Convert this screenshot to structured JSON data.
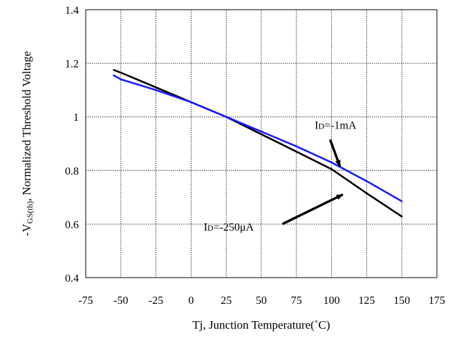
{
  "chart_data": {
    "type": "line",
    "title": "",
    "xlabel": "Tj, Junction Temperature(˚C)",
    "ylabel_prefix": "-V",
    "ylabel_sub": "GS(th)",
    "ylabel_suffix": ", Normalized Threshold Voltage",
    "xlim": [
      -75,
      175
    ],
    "ylim": [
      0.4,
      1.4
    ],
    "xticks": [
      -75,
      -50,
      -25,
      0,
      25,
      50,
      75,
      100,
      125,
      150,
      175
    ],
    "yticks": [
      0.4,
      0.6,
      0.8,
      1.0,
      1.2,
      1.4
    ],
    "ytick_labels": [
      "0.4",
      "0.6",
      "0.8",
      "1",
      "1.2",
      "1.4"
    ],
    "grid": true,
    "series": [
      {
        "name": "ID=-250μA",
        "color": "#000000",
        "x": [
          -55,
          -50,
          -25,
          0,
          25,
          50,
          75,
          100,
          125,
          150
        ],
        "y": [
          1.175,
          1.165,
          1.11,
          1.055,
          1.0,
          0.935,
          0.87,
          0.805,
          0.715,
          0.628
        ]
      },
      {
        "name": "ID=-1mA",
        "color": "#1a1aff",
        "x": [
          -55,
          -50,
          -25,
          0,
          25,
          50,
          75,
          100,
          125,
          150
        ],
        "y": [
          1.155,
          1.14,
          1.1,
          1.055,
          1.0,
          0.945,
          0.89,
          0.83,
          0.76,
          0.685
        ]
      }
    ],
    "annotations": [
      {
        "name": "annotation-id-1ma",
        "label_prefix": "I",
        "label_sub": "D",
        "label_suffix": "=-1mA",
        "text_x": 88,
        "text_y": 0.955,
        "arrow_from": [
          99,
          0.915
        ],
        "arrow_to": [
          106,
          0.815
        ]
      },
      {
        "name": "annotation-id-250ua",
        "label_prefix": "I",
        "label_sub": "D",
        "label_suffix": "=-250μA",
        "text_x": 9,
        "text_y": 0.575,
        "arrow_from": [
          65,
          0.6
        ],
        "arrow_to": [
          108,
          0.71
        ]
      }
    ]
  }
}
